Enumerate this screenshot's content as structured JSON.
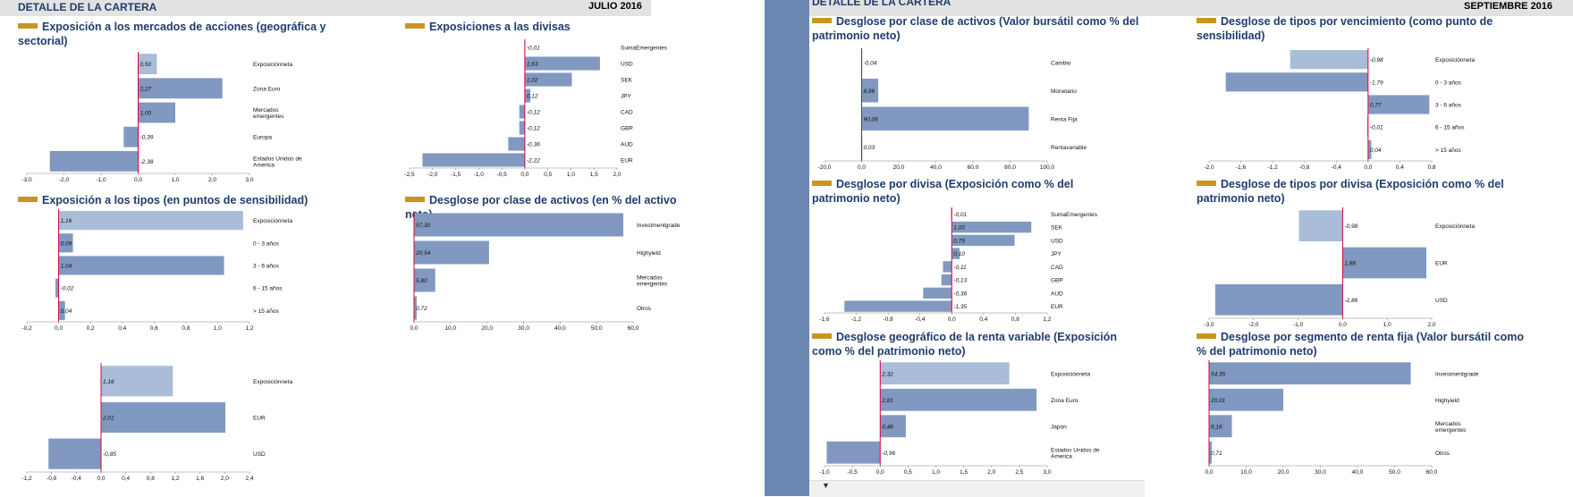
{
  "header_left": {
    "title": "DETALLE DE LA CARTERA",
    "date": "JULIO 2016"
  },
  "header_right": {
    "title": "DETALLE DE LA CARTERA",
    "date": "SEPTIEMBRE 2016"
  },
  "colors": {
    "bar": "#8199c0",
    "bar_light": "#a9bcd8",
    "zero_line": "#d9003a",
    "accent": "#c8961e",
    "title": "#1f3c6e"
  },
  "toolbar": {
    "arrow": "▼"
  },
  "panels": [
    {
      "title": "Exposición a los mercados de acciones (geográfica y sectorial)",
      "chart_data": {
        "type": "hbar",
        "categories": [
          "Exposiciónneta",
          "Zona Euro",
          "Mercados emergentes",
          "Europa",
          "Estados Unidos de America"
        ],
        "values": [
          0.5,
          2.27,
          1.0,
          -0.39,
          -2.38
        ],
        "labels": [
          "0,50",
          "2,27",
          "1,00",
          "-0,39",
          "-2,38"
        ],
        "xlim": [
          -3.0,
          3.0
        ],
        "ticks": [
          "-3,0",
          "-2,0",
          "-1,0",
          "0,0",
          "1,0",
          "2,0",
          "3,0"
        ],
        "highlight_first": true
      }
    },
    {
      "title": "Exposiciones a las divisas",
      "chart_data": {
        "type": "hbar",
        "categories": [
          "SumaEmergentes",
          "USD",
          "SEK",
          "JPY",
          "CAD",
          "GBP",
          "AUD",
          "EUR"
        ],
        "values": [
          -0.01,
          1.63,
          1.02,
          0.12,
          -0.12,
          -0.12,
          -0.36,
          -2.22
        ],
        "labels": [
          "-0,01",
          "1,63",
          "1,02",
          "0,12",
          "-0,12",
          "-0,12",
          "-0,36",
          "-2,22"
        ],
        "xlim": [
          -2.5,
          2.0
        ],
        "ticks": [
          "-2,5",
          "-2,0",
          "-1,5",
          "-1,0",
          "-0,5",
          "0,0",
          "0,5",
          "1,0",
          "1,5",
          "2,0"
        ],
        "highlight_first": false
      }
    },
    {
      "title": "Exposición a los tipos (en puntos de sensibilidad)",
      "chart_data": {
        "type": "hbar",
        "categories": [
          "Exposiciónneta",
          "0 - 3 años",
          "3 - 6 años",
          "6 - 15 años",
          "> 15 años"
        ],
        "values": [
          1.16,
          0.09,
          1.04,
          -0.02,
          0.04
        ],
        "labels": [
          "1,16",
          "0,09",
          "1,04",
          "-0,02",
          "0,04"
        ],
        "xlim": [
          -0.2,
          1.2
        ],
        "ticks": [
          "-0,2",
          "0,0",
          "0,2",
          "0,4",
          "0,6",
          "0,8",
          "1,0",
          "1,2"
        ],
        "highlight_first": true
      }
    },
    {
      "title": "Desglose por clase de activos (en % del activo neto)",
      "chart_data": {
        "type": "hbar",
        "categories": [
          "Investmentgrade",
          "Highyield",
          "Mercados emergentes",
          "Otros"
        ],
        "values": [
          57.3,
          20.54,
          5.8,
          0.72
        ],
        "labels": [
          "57,30",
          "20,54",
          "5,80",
          "0,72"
        ],
        "xlim": [
          0,
          60
        ],
        "ticks": [
          "0,0",
          "10,0",
          "20,0",
          "30,0",
          "40,0",
          "50,0",
          "60,0"
        ],
        "highlight_first": false
      }
    },
    {
      "title": "",
      "chart_data": {
        "type": "hbar",
        "categories": [
          "Exposiciónneta",
          "EUR",
          "USD"
        ],
        "values": [
          1.16,
          2.01,
          -0.85
        ],
        "labels": [
          "1,16",
          "2,01",
          "-0,85"
        ],
        "xlim": [
          -1.2,
          2.4
        ],
        "ticks": [
          "-1,2",
          "-0,8",
          "-0,4",
          "0,0",
          "0,4",
          "0,8",
          "1,2",
          "1,6",
          "2,0",
          "2,4"
        ],
        "highlight_first": true
      }
    },
    {
      "title": "Desglose por clase de activos (Valor bursátil como % del patrimonio neto)",
      "chart_data": {
        "type": "hbar",
        "categories": [
          "Cambio",
          "Monetario",
          "Renta Fija",
          "Rentavariable"
        ],
        "values": [
          -0.04,
          8.96,
          90.06,
          0.03
        ],
        "labels": [
          "-0,04",
          "8,96",
          "90,06",
          "0,03"
        ],
        "xlim": [
          -20,
          100
        ],
        "ticks": [
          "-20,0",
          "0,0",
          "20,0",
          "40,0",
          "60,0",
          "80,0",
          "100,0"
        ],
        "highlight_first": false
      }
    },
    {
      "title": "Desglose de tipos por vencimiento (como punto de sensibilidad)",
      "chart_data": {
        "type": "hbar",
        "categories": [
          "Exposiciónneta",
          "0 - 3 años",
          "3 - 6 años",
          "6 - 15 años",
          "> 15 años"
        ],
        "values": [
          -0.98,
          -1.79,
          0.77,
          -0.01,
          0.04
        ],
        "labels": [
          "-0,98",
          "-1,79",
          "0,77",
          "-0,01",
          "0,04"
        ],
        "xlim": [
          -2.0,
          0.8
        ],
        "ticks": [
          "-2,0",
          "-1,6",
          "-1,2",
          "-0,8",
          "-0,4",
          "0,0",
          "0,4",
          "0,8"
        ],
        "highlight_first": true
      }
    },
    {
      "title": "Desglose por divisa (Exposición como % del patrimonio neto)",
      "chart_data": {
        "type": "hbar",
        "categories": [
          "SumaEmergentes",
          "SEK",
          "USD",
          "JPY",
          "CAD",
          "GBP",
          "AUD",
          "EUR"
        ],
        "values": [
          -0.01,
          1.0,
          0.79,
          0.1,
          -0.11,
          -0.13,
          -0.36,
          -1.35
        ],
        "labels": [
          "-0,01",
          "1,00",
          "0,79",
          "0,10",
          "-0,11",
          "-0,13",
          "-0,36",
          "-1,35"
        ],
        "xlim": [
          -1.6,
          1.2
        ],
        "ticks": [
          "-1,6",
          "-1,2",
          "-0,8",
          "-0,4",
          "0,0",
          "0,4",
          "0,8",
          "1,2"
        ],
        "highlight_first": false
      }
    },
    {
      "title": "Desglose de tipos por divisa (Exposición como % del patrimonio neto)",
      "chart_data": {
        "type": "hbar",
        "categories": [
          "Exposiciónneta",
          "EUR",
          "USD"
        ],
        "values": [
          -0.98,
          1.88,
          -2.86
        ],
        "labels": [
          "-0,98",
          "1,88",
          "-2,86"
        ],
        "xlim": [
          -3.0,
          2.0
        ],
        "ticks": [
          "-3,0",
          "-2,0",
          "-1,0",
          "0,0",
          "1,0",
          "2,0"
        ],
        "highlight_first": true
      }
    },
    {
      "title": "Desglose geográfico de la renta variable (Exposición como % del patrimonio neto)",
      "chart_data": {
        "type": "hbar",
        "categories": [
          "Exposiciónneta",
          "Zona Euro",
          "Japón",
          "Estados Unidos de America"
        ],
        "values": [
          2.32,
          2.81,
          0.46,
          -0.96
        ],
        "labels": [
          "2,32",
          "2,81",
          "0,46",
          "-0,96"
        ],
        "xlim": [
          -1.0,
          3.0
        ],
        "ticks": [
          "-1,0",
          "-0,5",
          "0,0",
          "0,5",
          "1,0",
          "1,5",
          "2,0",
          "2,5",
          "3,0"
        ],
        "highlight_first": true
      }
    },
    {
      "title": "Desglose por segmento de renta fija (Valor bursátil como % del patrimonio neto)",
      "chart_data": {
        "type": "hbar",
        "categories": [
          "Investmentgrade",
          "Highyield",
          "Mercados emergentes",
          "Otros"
        ],
        "values": [
          54.35,
          20.01,
          6.16,
          0.71
        ],
        "labels": [
          "54,35",
          "20,01",
          "6,16",
          "0,71"
        ],
        "xlim": [
          0,
          60
        ],
        "ticks": [
          "0,0",
          "10,0",
          "20,0",
          "30,0",
          "40,0",
          "50,0",
          "60,0"
        ],
        "highlight_first": false
      }
    }
  ]
}
